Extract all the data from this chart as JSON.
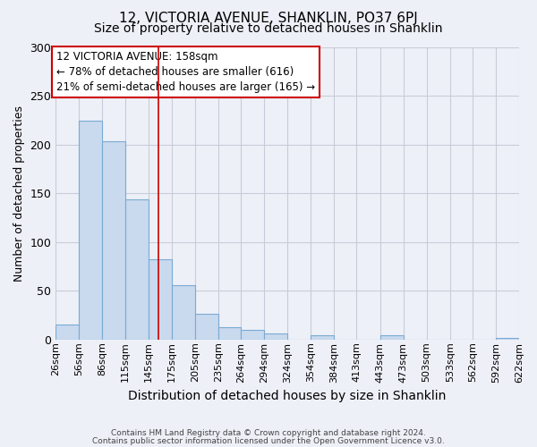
{
  "title": "12, VICTORIA AVENUE, SHANKLIN, PO37 6PJ",
  "subtitle": "Size of property relative to detached houses in Shanklin",
  "xlabel": "Distribution of detached houses by size in Shanklin",
  "ylabel": "Number of detached properties",
  "bar_left_edges": [
    26,
    56,
    86,
    115,
    145,
    175,
    205,
    235,
    264,
    294,
    324,
    354,
    384,
    413,
    443,
    473,
    503,
    533,
    562,
    592
  ],
  "bar_heights": [
    15,
    224,
    203,
    144,
    82,
    56,
    26,
    13,
    10,
    6,
    0,
    4,
    0,
    0,
    4,
    0,
    0,
    0,
    0,
    2
  ],
  "bar_widths": [
    30,
    30,
    29,
    30,
    30,
    30,
    30,
    29,
    30,
    30,
    30,
    30,
    29,
    30,
    30,
    30,
    30,
    29,
    30,
    30
  ],
  "tick_labels": [
    "26sqm",
    "56sqm",
    "86sqm",
    "115sqm",
    "145sqm",
    "175sqm",
    "205sqm",
    "235sqm",
    "264sqm",
    "294sqm",
    "324sqm",
    "354sqm",
    "384sqm",
    "413sqm",
    "443sqm",
    "473sqm",
    "503sqm",
    "533sqm",
    "562sqm",
    "592sqm",
    "622sqm"
  ],
  "bar_color": "#c9d9ee",
  "bar_edge_color": "#7aabd4",
  "vline_x": 158,
  "vline_color": "#cc0000",
  "ylim": [
    0,
    300
  ],
  "yticks": [
    0,
    50,
    100,
    150,
    200,
    250,
    300
  ],
  "annotation_title": "12 VICTORIA AVENUE: 158sqm",
  "annotation_line1": "← 78% of detached houses are smaller (616)",
  "annotation_line2": "21% of semi-detached houses are larger (165) →",
  "annotation_box_color": "#ffffff",
  "annotation_box_edge_color": "#cc0000",
  "footer1": "Contains HM Land Registry data © Crown copyright and database right 2024.",
  "footer2": "Contains public sector information licensed under the Open Government Licence v3.0.",
  "background_color": "#eef0f8",
  "plot_bg_color": "#eef0f8",
  "grid_color": "#c8ccd8",
  "title_fontsize": 11,
  "subtitle_fontsize": 10,
  "tick_fontsize": 8,
  "ylabel_fontsize": 9,
  "xlabel_fontsize": 10
}
